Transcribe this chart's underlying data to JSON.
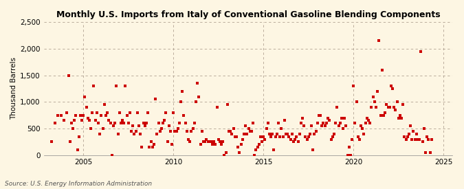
{
  "title": "Monthly U.S. Imports from Italy of Conventional Gasoline Blending Components",
  "ylabel": "Thousand Barrels",
  "source": "Source: U.S. Energy Information Administration",
  "background_color": "#fdf6e3",
  "plot_background_color": "#fdf6e3",
  "marker_color": "#cc0000",
  "marker_size": 9,
  "ylim": [
    0,
    2500
  ],
  "yticks": [
    0,
    500,
    1000,
    1500,
    2000,
    2500
  ],
  "ytick_labels": [
    "0",
    "500",
    "1,000",
    "1,500",
    "2,000",
    "2,500"
  ],
  "xlim_start": 2002.8,
  "xlim_end": 2025.5,
  "xticks": [
    2005,
    2010,
    2015,
    2020,
    2025
  ],
  "data": [
    [
      2003.25,
      250
    ],
    [
      2003.42,
      600
    ],
    [
      2003.58,
      750
    ],
    [
      2003.75,
      750
    ],
    [
      2003.92,
      650
    ],
    [
      2004.08,
      800
    ],
    [
      2004.17,
      1500
    ],
    [
      2004.25,
      250
    ],
    [
      2004.33,
      600
    ],
    [
      2004.42,
      500
    ],
    [
      2004.5,
      650
    ],
    [
      2004.58,
      750
    ],
    [
      2004.67,
      100
    ],
    [
      2004.75,
      350
    ],
    [
      2004.83,
      750
    ],
    [
      2004.92,
      650
    ],
    [
      2005.0,
      750
    ],
    [
      2005.08,
      1100
    ],
    [
      2005.17,
      900
    ],
    [
      2005.25,
      700
    ],
    [
      2005.33,
      650
    ],
    [
      2005.42,
      500
    ],
    [
      2005.5,
      800
    ],
    [
      2005.58,
      1300
    ],
    [
      2005.67,
      650
    ],
    [
      2005.75,
      800
    ],
    [
      2005.83,
      600
    ],
    [
      2005.92,
      400
    ],
    [
      2006.0,
      750
    ],
    [
      2006.08,
      500
    ],
    [
      2006.17,
      950
    ],
    [
      2006.25,
      750
    ],
    [
      2006.33,
      800
    ],
    [
      2006.42,
      650
    ],
    [
      2006.5,
      600
    ],
    [
      2006.58,
      0
    ],
    [
      2006.67,
      550
    ],
    [
      2006.75,
      600
    ],
    [
      2006.83,
      1300
    ],
    [
      2006.92,
      400
    ],
    [
      2007.0,
      800
    ],
    [
      2007.08,
      600
    ],
    [
      2007.17,
      650
    ],
    [
      2007.25,
      600
    ],
    [
      2007.33,
      1300
    ],
    [
      2007.42,
      750
    ],
    [
      2007.5,
      600
    ],
    [
      2007.58,
      800
    ],
    [
      2007.67,
      450
    ],
    [
      2007.75,
      550
    ],
    [
      2007.83,
      400
    ],
    [
      2007.92,
      450
    ],
    [
      2008.0,
      800
    ],
    [
      2008.08,
      550
    ],
    [
      2008.17,
      400
    ],
    [
      2008.25,
      150
    ],
    [
      2008.33,
      600
    ],
    [
      2008.42,
      550
    ],
    [
      2008.5,
      600
    ],
    [
      2008.58,
      800
    ],
    [
      2008.67,
      150
    ],
    [
      2008.75,
      250
    ],
    [
      2008.83,
      150
    ],
    [
      2008.92,
      200
    ],
    [
      2009.0,
      1050
    ],
    [
      2009.08,
      400
    ],
    [
      2009.17,
      600
    ],
    [
      2009.25,
      450
    ],
    [
      2009.33,
      500
    ],
    [
      2009.42,
      600
    ],
    [
      2009.5,
      650
    ],
    [
      2009.58,
      800
    ],
    [
      2009.67,
      250
    ],
    [
      2009.75,
      550
    ],
    [
      2009.83,
      450
    ],
    [
      2009.92,
      200
    ],
    [
      2010.0,
      800
    ],
    [
      2010.08,
      450
    ],
    [
      2010.17,
      450
    ],
    [
      2010.25,
      500
    ],
    [
      2010.33,
      600
    ],
    [
      2010.42,
      1000
    ],
    [
      2010.5,
      1200
    ],
    [
      2010.58,
      750
    ],
    [
      2010.67,
      600
    ],
    [
      2010.75,
      450
    ],
    [
      2010.83,
      300
    ],
    [
      2010.92,
      250
    ],
    [
      2011.0,
      450
    ],
    [
      2011.08,
      500
    ],
    [
      2011.17,
      600
    ],
    [
      2011.25,
      1000
    ],
    [
      2011.33,
      1350
    ],
    [
      2011.42,
      1100
    ],
    [
      2011.5,
      200
    ],
    [
      2011.58,
      450
    ],
    [
      2011.67,
      250
    ],
    [
      2011.75,
      250
    ],
    [
      2011.83,
      300
    ],
    [
      2011.92,
      250
    ],
    [
      2012.0,
      250
    ],
    [
      2012.08,
      250
    ],
    [
      2012.17,
      200
    ],
    [
      2012.25,
      250
    ],
    [
      2012.33,
      200
    ],
    [
      2012.42,
      900
    ],
    [
      2012.5,
      300
    ],
    [
      2012.58,
      250
    ],
    [
      2012.67,
      200
    ],
    [
      2012.75,
      250
    ],
    [
      2012.83,
      0
    ],
    [
      2012.92,
      50
    ],
    [
      2013.0,
      950
    ],
    [
      2013.08,
      450
    ],
    [
      2013.17,
      450
    ],
    [
      2013.25,
      400
    ],
    [
      2013.33,
      500
    ],
    [
      2013.42,
      350
    ],
    [
      2013.5,
      350
    ],
    [
      2013.58,
      150
    ],
    [
      2013.67,
      50
    ],
    [
      2013.75,
      200
    ],
    [
      2013.83,
      300
    ],
    [
      2013.92,
      400
    ],
    [
      2014.0,
      550
    ],
    [
      2014.08,
      400
    ],
    [
      2014.17,
      500
    ],
    [
      2014.25,
      450
    ],
    [
      2014.33,
      450
    ],
    [
      2014.42,
      600
    ],
    [
      2014.5,
      0
    ],
    [
      2014.58,
      100
    ],
    [
      2014.67,
      150
    ],
    [
      2014.75,
      200
    ],
    [
      2014.83,
      350
    ],
    [
      2014.92,
      250
    ],
    [
      2015.0,
      350
    ],
    [
      2015.08,
      300
    ],
    [
      2015.17,
      500
    ],
    [
      2015.25,
      600
    ],
    [
      2015.33,
      400
    ],
    [
      2015.42,
      350
    ],
    [
      2015.5,
      400
    ],
    [
      2015.58,
      100
    ],
    [
      2015.67,
      350
    ],
    [
      2015.75,
      400
    ],
    [
      2015.83,
      600
    ],
    [
      2015.92,
      350
    ],
    [
      2016.0,
      500
    ],
    [
      2016.08,
      350
    ],
    [
      2016.17,
      650
    ],
    [
      2016.25,
      400
    ],
    [
      2016.33,
      400
    ],
    [
      2016.42,
      350
    ],
    [
      2016.5,
      300
    ],
    [
      2016.58,
      400
    ],
    [
      2016.67,
      250
    ],
    [
      2016.75,
      300
    ],
    [
      2016.83,
      350
    ],
    [
      2016.92,
      250
    ],
    [
      2017.0,
      400
    ],
    [
      2017.08,
      600
    ],
    [
      2017.17,
      700
    ],
    [
      2017.25,
      550
    ],
    [
      2017.33,
      350
    ],
    [
      2017.42,
      300
    ],
    [
      2017.5,
      350
    ],
    [
      2017.58,
      400
    ],
    [
      2017.67,
      550
    ],
    [
      2017.75,
      100
    ],
    [
      2017.83,
      400
    ],
    [
      2017.92,
      450
    ],
    [
      2018.0,
      600
    ],
    [
      2018.08,
      750
    ],
    [
      2018.17,
      750
    ],
    [
      2018.25,
      550
    ],
    [
      2018.33,
      600
    ],
    [
      2018.42,
      550
    ],
    [
      2018.5,
      600
    ],
    [
      2018.58,
      700
    ],
    [
      2018.67,
      650
    ],
    [
      2018.75,
      300
    ],
    [
      2018.83,
      350
    ],
    [
      2018.92,
      400
    ],
    [
      2019.0,
      600
    ],
    [
      2019.08,
      900
    ],
    [
      2019.17,
      550
    ],
    [
      2019.25,
      600
    ],
    [
      2019.33,
      700
    ],
    [
      2019.42,
      500
    ],
    [
      2019.5,
      700
    ],
    [
      2019.58,
      550
    ],
    [
      2019.67,
      0
    ],
    [
      2019.75,
      150
    ],
    [
      2019.83,
      0
    ],
    [
      2019.92,
      300
    ],
    [
      2020.0,
      1300
    ],
    [
      2020.08,
      600
    ],
    [
      2020.17,
      1000
    ],
    [
      2020.25,
      350
    ],
    [
      2020.33,
      300
    ],
    [
      2020.42,
      550
    ],
    [
      2020.5,
      500
    ],
    [
      2020.58,
      400
    ],
    [
      2020.67,
      600
    ],
    [
      2020.75,
      700
    ],
    [
      2020.83,
      650
    ],
    [
      2020.92,
      600
    ],
    [
      2021.0,
      900
    ],
    [
      2021.08,
      1100
    ],
    [
      2021.17,
      1000
    ],
    [
      2021.25,
      900
    ],
    [
      2021.33,
      1200
    ],
    [
      2021.42,
      2150
    ],
    [
      2021.5,
      750
    ],
    [
      2021.58,
      1600
    ],
    [
      2021.67,
      750
    ],
    [
      2021.75,
      800
    ],
    [
      2021.83,
      950
    ],
    [
      2021.92,
      900
    ],
    [
      2022.0,
      900
    ],
    [
      2022.08,
      1300
    ],
    [
      2022.17,
      1250
    ],
    [
      2022.25,
      900
    ],
    [
      2022.33,
      850
    ],
    [
      2022.42,
      1000
    ],
    [
      2022.5,
      700
    ],
    [
      2022.58,
      750
    ],
    [
      2022.67,
      700
    ],
    [
      2022.75,
      950
    ],
    [
      2022.83,
      350
    ],
    [
      2022.92,
      300
    ],
    [
      2023.0,
      350
    ],
    [
      2023.08,
      400
    ],
    [
      2023.17,
      550
    ],
    [
      2023.25,
      300
    ],
    [
      2023.33,
      450
    ],
    [
      2023.42,
      300
    ],
    [
      2023.5,
      400
    ],
    [
      2023.58,
      300
    ],
    [
      2023.67,
      300
    ],
    [
      2023.75,
      1950
    ],
    [
      2023.83,
      250
    ],
    [
      2023.92,
      500
    ],
    [
      2024.0,
      50
    ],
    [
      2024.08,
      350
    ],
    [
      2024.17,
      300
    ],
    [
      2024.25,
      50
    ],
    [
      2024.33,
      300
    ]
  ]
}
